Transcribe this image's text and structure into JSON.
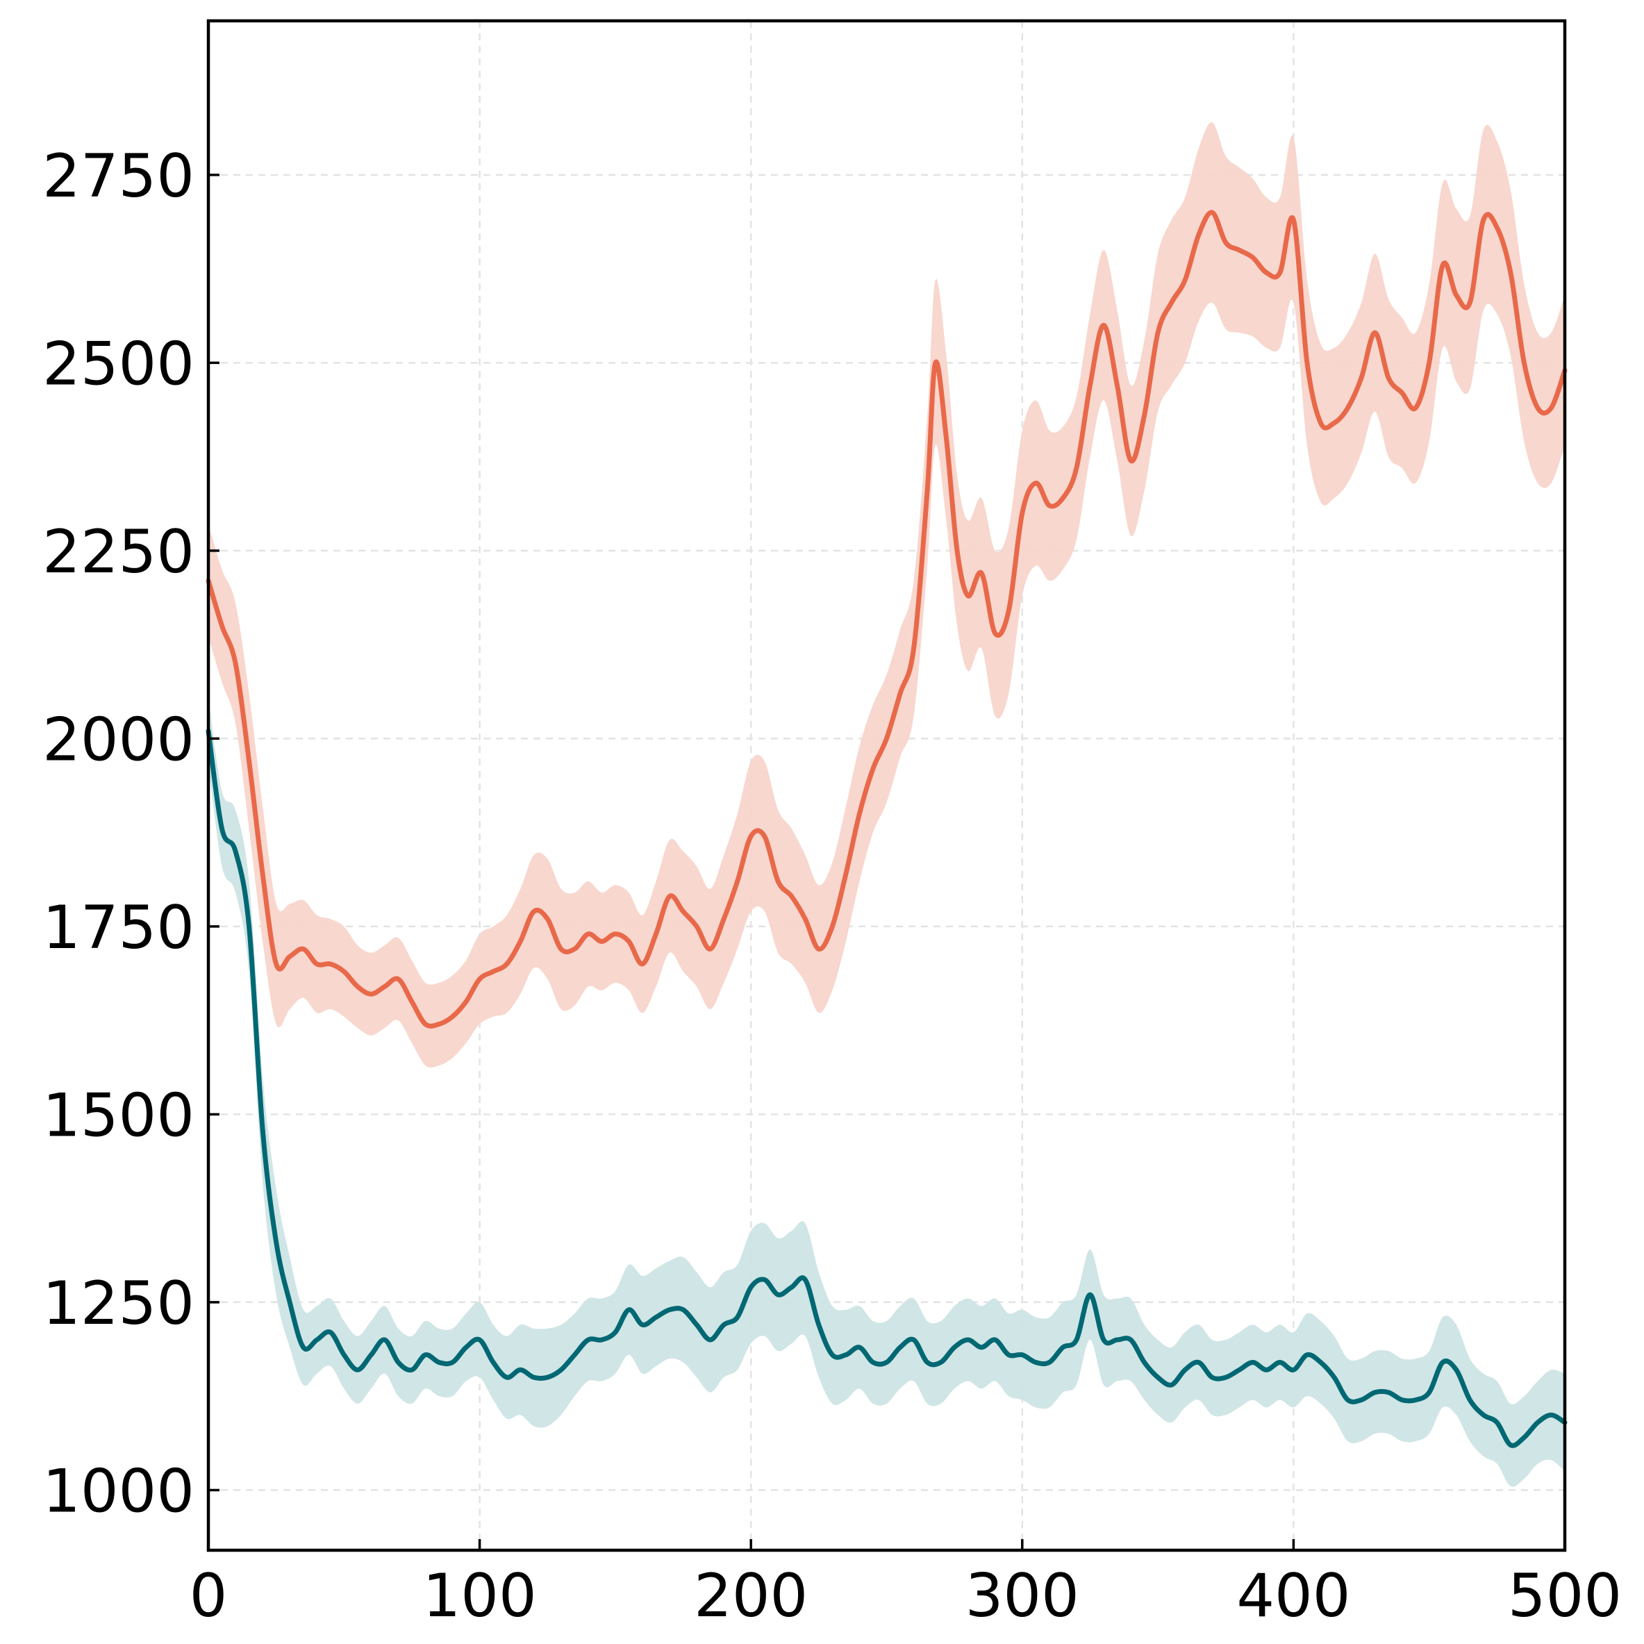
{
  "chart_data": {
    "type": "line",
    "title": "",
    "xlabel": "",
    "ylabel": "",
    "xlim": [
      0,
      500
    ],
    "ylim": [
      920,
      2955
    ],
    "grid": true,
    "legend": "none",
    "x_ticks": [
      0,
      100,
      200,
      300,
      400,
      500
    ],
    "y_ticks": [
      1000,
      1250,
      1500,
      1750,
      2000,
      2250,
      2500,
      2750
    ],
    "x_tick_labels": [
      "0",
      "100",
      "200",
      "300",
      "400",
      "500"
    ],
    "y_tick_labels": [
      "1000",
      "1250",
      "1500",
      "1750",
      "2000",
      "2250",
      "2500",
      "2750"
    ],
    "series": [
      {
        "color": "#E8694A",
        "band_color": "#F7D3C9",
        "x": [
          0,
          5,
          10,
          15,
          20,
          25,
          30,
          35,
          40,
          45,
          50,
          55,
          60,
          65,
          70,
          75,
          80,
          85,
          90,
          95,
          100,
          105,
          110,
          115,
          120,
          125,
          130,
          135,
          140,
          145,
          150,
          155,
          160,
          165,
          170,
          175,
          180,
          185,
          190,
          195,
          200,
          205,
          210,
          215,
          220,
          225,
          230,
          235,
          240,
          245,
          250,
          255,
          260,
          265,
          268,
          272,
          276,
          280,
          285,
          290,
          295,
          300,
          305,
          310,
          315,
          320,
          325,
          330,
          335,
          340,
          345,
          350,
          355,
          360,
          365,
          370,
          375,
          380,
          385,
          390,
          395,
          400,
          405,
          410,
          415,
          420,
          425,
          430,
          435,
          440,
          445,
          450,
          455,
          460,
          465,
          470,
          475,
          480,
          485,
          490,
          495,
          500
        ],
        "y": [
          2210,
          2150,
          2100,
          1970,
          1820,
          1700,
          1710,
          1720,
          1700,
          1700,
          1690,
          1670,
          1660,
          1670,
          1680,
          1650,
          1620,
          1620,
          1630,
          1650,
          1680,
          1690,
          1700,
          1730,
          1770,
          1760,
          1720,
          1720,
          1740,
          1730,
          1740,
          1730,
          1700,
          1740,
          1790,
          1770,
          1750,
          1720,
          1760,
          1810,
          1870,
          1870,
          1810,
          1790,
          1760,
          1720,
          1750,
          1820,
          1900,
          1960,
          2000,
          2060,
          2120,
          2330,
          2500,
          2400,
          2250,
          2190,
          2220,
          2140,
          2170,
          2300,
          2340,
          2310,
          2320,
          2360,
          2470,
          2550,
          2470,
          2370,
          2430,
          2540,
          2580,
          2610,
          2670,
          2700,
          2660,
          2650,
          2640,
          2620,
          2620,
          2690,
          2500,
          2420,
          2420,
          2440,
          2480,
          2540,
          2480,
          2460,
          2440,
          2500,
          2630,
          2590,
          2580,
          2690,
          2680,
          2620,
          2500,
          2440,
          2440,
          2490
        ],
        "band": [
          75,
          75,
          80,
          90,
          90,
          80,
          70,
          65,
          65,
          60,
          60,
          55,
          55,
          55,
          55,
          55,
          55,
          55,
          55,
          55,
          60,
          60,
          65,
          70,
          75,
          80,
          80,
          75,
          70,
          65,
          65,
          65,
          65,
          70,
          75,
          80,
          80,
          80,
          85,
          90,
          100,
          100,
          95,
          90,
          85,
          85,
          85,
          90,
          90,
          85,
          85,
          85,
          90,
          100,
          110,
          110,
          100,
          100,
          100,
          110,
          110,
          110,
          110,
          100,
          95,
          95,
          95,
          100,
          100,
          100,
          100,
          105,
          110,
          110,
          115,
          120,
          115,
          110,
          105,
          100,
          100,
          110,
          110,
          105,
          100,
          100,
          100,
          105,
          105,
          100,
          100,
          105,
          110,
          115,
          115,
          120,
          115,
          110,
          105,
          100,
          100,
          100
        ]
      },
      {
        "color": "#006873",
        "band_color": "#CBE2E3",
        "x": [
          0,
          5,
          10,
          15,
          20,
          25,
          30,
          35,
          40,
          45,
          50,
          55,
          60,
          65,
          70,
          75,
          80,
          85,
          90,
          95,
          100,
          105,
          110,
          115,
          120,
          125,
          130,
          135,
          140,
          145,
          150,
          155,
          160,
          165,
          170,
          175,
          180,
          185,
          190,
          195,
          200,
          205,
          210,
          215,
          220,
          225,
          230,
          235,
          240,
          245,
          250,
          255,
          260,
          265,
          270,
          275,
          280,
          285,
          290,
          295,
          300,
          305,
          310,
          315,
          320,
          325,
          330,
          335,
          340,
          345,
          350,
          355,
          360,
          365,
          370,
          375,
          380,
          385,
          390,
          395,
          400,
          405,
          410,
          415,
          420,
          425,
          430,
          435,
          440,
          445,
          450,
          455,
          460,
          465,
          470,
          475,
          480,
          485,
          490,
          495,
          500
        ],
        "y": [
          2010,
          1880,
          1850,
          1750,
          1480,
          1330,
          1250,
          1190,
          1200,
          1210,
          1180,
          1160,
          1180,
          1200,
          1170,
          1160,
          1180,
          1170,
          1170,
          1190,
          1200,
          1170,
          1150,
          1160,
          1150,
          1150,
          1160,
          1180,
          1200,
          1200,
          1210,
          1240,
          1220,
          1230,
          1240,
          1240,
          1220,
          1200,
          1220,
          1230,
          1270,
          1280,
          1260,
          1270,
          1280,
          1220,
          1180,
          1180,
          1190,
          1170,
          1170,
          1190,
          1200,
          1170,
          1170,
          1190,
          1200,
          1190,
          1200,
          1180,
          1180,
          1170,
          1170,
          1190,
          1200,
          1260,
          1200,
          1200,
          1200,
          1170,
          1150,
          1140,
          1160,
          1170,
          1150,
          1150,
          1160,
          1170,
          1160,
          1170,
          1160,
          1180,
          1170,
          1150,
          1120,
          1120,
          1130,
          1130,
          1120,
          1120,
          1130,
          1170,
          1160,
          1120,
          1100,
          1090,
          1060,
          1070,
          1090,
          1100,
          1090
        ],
        "band": [
          45,
          50,
          55,
          60,
          70,
          70,
          60,
          50,
          45,
          45,
          45,
          45,
          45,
          45,
          45,
          45,
          45,
          45,
          45,
          45,
          50,
          50,
          55,
          60,
          65,
          65,
          60,
          55,
          55,
          55,
          55,
          60,
          65,
          65,
          65,
          70,
          70,
          70,
          70,
          70,
          75,
          75,
          75,
          75,
          75,
          70,
          65,
          60,
          55,
          55,
          55,
          55,
          55,
          55,
          55,
          55,
          55,
          55,
          55,
          55,
          60,
          60,
          60,
          60,
          60,
          60,
          60,
          55,
          55,
          50,
          50,
          50,
          50,
          50,
          50,
          50,
          50,
          50,
          50,
          50,
          50,
          55,
          55,
          55,
          55,
          55,
          55,
          55,
          55,
          55,
          55,
          60,
          60,
          55,
          55,
          55,
          55,
          55,
          55,
          60,
          65
        ]
      }
    ]
  }
}
